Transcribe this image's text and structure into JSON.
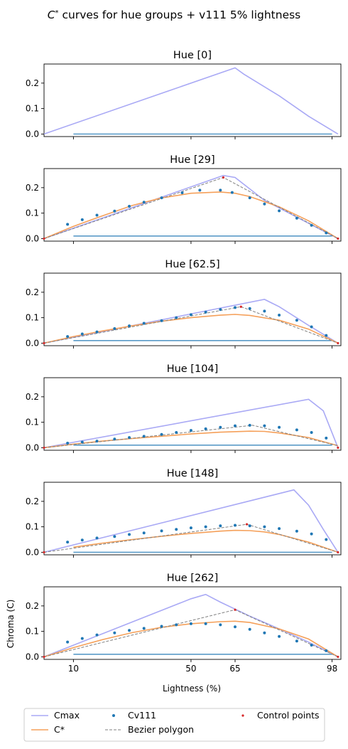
{
  "chart_data": {
    "type": "line",
    "title_prefix": "C",
    "title_sup": "*",
    "title_rest": " curves for hue groups + v111 5% lightness",
    "xlabel": "Lightness (%)",
    "ylabel": "Chroma (C)",
    "xlim": [
      0,
      101
    ],
    "ylim": [
      -0.01,
      0.275
    ],
    "xticks": [
      10,
      50,
      65,
      98
    ],
    "xtick_labels": [
      "10",
      "50",
      "65",
      "98"
    ],
    "yticks": [
      0.0,
      0.1,
      0.2
    ],
    "ytick_labels": [
      "0.0",
      "0.1",
      "0.2"
    ],
    "legend": {
      "placement": "below",
      "entries": [
        {
          "key": "cmax",
          "label": "Cmax"
        },
        {
          "key": "cstar",
          "label": "C*"
        },
        {
          "key": "cv111",
          "label": "Cv111"
        },
        {
          "key": "bezier",
          "label": "Bezier polygon"
        },
        {
          "key": "ctrl",
          "label": "Control points"
        }
      ]
    },
    "colors": {
      "cmax": "#a9a9f5",
      "cstar": "#f5a05a",
      "cv111": "#1f77b4",
      "bezier": "#808080",
      "ctrl": "#d62728",
      "baseline": "#5b9bc8"
    },
    "panels": [
      {
        "title": "Hue [0]",
        "cmax": [
          [
            0,
            0
          ],
          [
            65,
            0.26
          ],
          [
            68,
            0.235
          ],
          [
            80,
            0.15
          ],
          [
            90,
            0.07
          ],
          [
            100,
            0
          ]
        ],
        "cstar": [],
        "cv111": [],
        "bezier": [],
        "ctrl": [],
        "baseline": {
          "y": 0.0,
          "x0": 10,
          "x1": 98
        },
        "show_xticklabels": false
      },
      {
        "title": "Hue [29]",
        "cmax": [
          [
            0,
            0
          ],
          [
            61,
            0.248
          ],
          [
            65,
            0.24
          ],
          [
            75,
            0.15
          ],
          [
            90,
            0.06
          ],
          [
            100,
            0
          ]
        ],
        "cstar": [
          [
            0,
            0
          ],
          [
            10,
            0.048
          ],
          [
            20,
            0.09
          ],
          [
            30,
            0.13
          ],
          [
            40,
            0.16
          ],
          [
            50,
            0.178
          ],
          [
            60,
            0.183
          ],
          [
            65,
            0.178
          ],
          [
            70,
            0.165
          ],
          [
            80,
            0.125
          ],
          [
            90,
            0.07
          ],
          [
            100,
            0
          ]
        ],
        "cv111": [
          [
            8,
            0.056
          ],
          [
            13,
            0.074
          ],
          [
            18,
            0.092
          ],
          [
            24,
            0.108
          ],
          [
            29,
            0.127
          ],
          [
            34,
            0.143
          ],
          [
            40,
            0.16
          ],
          [
            47,
            0.18
          ],
          [
            53,
            0.19
          ],
          [
            60,
            0.19
          ],
          [
            64,
            0.181
          ],
          [
            70,
            0.16
          ],
          [
            75,
            0.136
          ],
          [
            80,
            0.109
          ],
          [
            86,
            0.08
          ],
          [
            91,
            0.052
          ],
          [
            96,
            0.022
          ]
        ],
        "bezier": [
          [
            0,
            0
          ],
          [
            61,
            0.24
          ],
          [
            100,
            0
          ]
        ],
        "ctrl": [
          [
            0,
            0
          ],
          [
            61,
            0.24
          ],
          [
            100,
            0
          ]
        ],
        "baseline": {
          "y": 0.01,
          "x0": 10,
          "x1": 98
        },
        "show_xticklabels": false
      },
      {
        "title": "Hue [62.5]",
        "cmax": [
          [
            0,
            0
          ],
          [
            75,
            0.172
          ],
          [
            80,
            0.143
          ],
          [
            90,
            0.07
          ],
          [
            100,
            0
          ]
        ],
        "cstar": [
          [
            0,
            0
          ],
          [
            10,
            0.026
          ],
          [
            20,
            0.048
          ],
          [
            30,
            0.068
          ],
          [
            40,
            0.086
          ],
          [
            50,
            0.1
          ],
          [
            60,
            0.11
          ],
          [
            65,
            0.113
          ],
          [
            70,
            0.109
          ],
          [
            80,
            0.09
          ],
          [
            90,
            0.055
          ],
          [
            100,
            0
          ]
        ],
        "cv111": [
          [
            8,
            0.026
          ],
          [
            13,
            0.036
          ],
          [
            18,
            0.044
          ],
          [
            24,
            0.057
          ],
          [
            29,
            0.068
          ],
          [
            34,
            0.078
          ],
          [
            40,
            0.088
          ],
          [
            45,
            0.1
          ],
          [
            50,
            0.112
          ],
          [
            55,
            0.122
          ],
          [
            60,
            0.132
          ],
          [
            65,
            0.14
          ],
          [
            70,
            0.136
          ],
          [
            75,
            0.126
          ],
          [
            80,
            0.11
          ],
          [
            86,
            0.09
          ],
          [
            91,
            0.064
          ],
          [
            96,
            0.03
          ]
        ],
        "bezier": [
          [
            0,
            0
          ],
          [
            67,
            0.143
          ],
          [
            100,
            0
          ]
        ],
        "ctrl": [
          [
            0,
            0
          ],
          [
            67,
            0.143
          ],
          [
            100,
            0
          ]
        ],
        "baseline": {
          "y": 0.01,
          "x0": 10,
          "x1": 98
        },
        "show_xticklabels": false
      },
      {
        "title": "Hue [104]",
        "cmax": [
          [
            0,
            0
          ],
          [
            90,
            0.19
          ],
          [
            95,
            0.145
          ],
          [
            100,
            0
          ]
        ],
        "cstar": [
          [
            0,
            0
          ],
          [
            10,
            0.014
          ],
          [
            20,
            0.026
          ],
          [
            30,
            0.036
          ],
          [
            40,
            0.045
          ],
          [
            50,
            0.054
          ],
          [
            60,
            0.061
          ],
          [
            70,
            0.065
          ],
          [
            75,
            0.064
          ],
          [
            80,
            0.058
          ],
          [
            90,
            0.04
          ],
          [
            100,
            0.008
          ]
        ],
        "cv111": [
          [
            8,
            0.018
          ],
          [
            13,
            0.022
          ],
          [
            18,
            0.026
          ],
          [
            24,
            0.034
          ],
          [
            29,
            0.04
          ],
          [
            34,
            0.045
          ],
          [
            40,
            0.052
          ],
          [
            45,
            0.06
          ],
          [
            50,
            0.068
          ],
          [
            55,
            0.074
          ],
          [
            60,
            0.08
          ],
          [
            65,
            0.086
          ],
          [
            70,
            0.088
          ],
          [
            75,
            0.086
          ],
          [
            80,
            0.08
          ],
          [
            86,
            0.07
          ],
          [
            91,
            0.06
          ],
          [
            96,
            0.038
          ]
        ],
        "bezier": [
          [
            0,
            0
          ],
          [
            71,
            0.088
          ],
          [
            100,
            0.008
          ]
        ],
        "ctrl": [
          [
            0,
            0
          ],
          [
            100,
            0
          ]
        ],
        "baseline": {
          "y": 0.01,
          "x0": 10,
          "x1": 98
        },
        "show_xticklabels": false
      },
      {
        "title": "Hue [148]",
        "cmax": [
          [
            0,
            0
          ],
          [
            85,
            0.245
          ],
          [
            90,
            0.185
          ],
          [
            95,
            0.09
          ],
          [
            100,
            0
          ]
        ],
        "cstar": [
          [
            10,
            0.02
          ],
          [
            20,
            0.036
          ],
          [
            30,
            0.05
          ],
          [
            40,
            0.063
          ],
          [
            50,
            0.074
          ],
          [
            60,
            0.083
          ],
          [
            65,
            0.086
          ],
          [
            70,
            0.085
          ],
          [
            75,
            0.08
          ],
          [
            80,
            0.07
          ],
          [
            90,
            0.04
          ],
          [
            100,
            0
          ]
        ],
        "cv111": [
          [
            8,
            0.04
          ],
          [
            13,
            0.048
          ],
          [
            18,
            0.056
          ],
          [
            24,
            0.062
          ],
          [
            29,
            0.07
          ],
          [
            34,
            0.076
          ],
          [
            40,
            0.084
          ],
          [
            45,
            0.09
          ],
          [
            50,
            0.096
          ],
          [
            55,
            0.1
          ],
          [
            60,
            0.104
          ],
          [
            65,
            0.106
          ],
          [
            70,
            0.104
          ],
          [
            75,
            0.1
          ],
          [
            80,
            0.093
          ],
          [
            86,
            0.083
          ],
          [
            91,
            0.072
          ],
          [
            96,
            0.05
          ]
        ],
        "bezier": [
          [
            0,
            0
          ],
          [
            69,
            0.11
          ],
          [
            100,
            0
          ]
        ],
        "ctrl": [
          [
            0,
            0
          ],
          [
            69,
            0.11
          ],
          [
            100,
            0
          ]
        ],
        "baseline": {
          "y": 0.0,
          "x0": 10,
          "x1": 98
        },
        "show_xticklabels": true
      },
      {
        "title": "Hue [262]",
        "cmax": [
          [
            0,
            0
          ],
          [
            50,
            0.228
          ],
          [
            55,
            0.245
          ],
          [
            60,
            0.215
          ],
          [
            70,
            0.16
          ],
          [
            80,
            0.11
          ],
          [
            90,
            0.058
          ],
          [
            100,
            0
          ]
        ],
        "cstar": [
          [
            0,
            0
          ],
          [
            10,
            0.036
          ],
          [
            20,
            0.068
          ],
          [
            30,
            0.095
          ],
          [
            40,
            0.116
          ],
          [
            50,
            0.13
          ],
          [
            60,
            0.138
          ],
          [
            65,
            0.14
          ],
          [
            70,
            0.135
          ],
          [
            80,
            0.11
          ],
          [
            90,
            0.07
          ],
          [
            100,
            0
          ]
        ],
        "cv111": [
          [
            8,
            0.058
          ],
          [
            13,
            0.072
          ],
          [
            18,
            0.086
          ],
          [
            24,
            0.094
          ],
          [
            29,
            0.104
          ],
          [
            34,
            0.112
          ],
          [
            40,
            0.12
          ],
          [
            45,
            0.126
          ],
          [
            50,
            0.13
          ],
          [
            55,
            0.13
          ],
          [
            60,
            0.126
          ],
          [
            65,
            0.118
          ],
          [
            70,
            0.108
          ],
          [
            75,
            0.094
          ],
          [
            80,
            0.08
          ],
          [
            86,
            0.062
          ],
          [
            91,
            0.046
          ],
          [
            96,
            0.024
          ]
        ],
        "bezier": [
          [
            0,
            0
          ],
          [
            65,
            0.185
          ],
          [
            100,
            0
          ]
        ],
        "ctrl": [
          [
            0,
            0
          ],
          [
            65,
            0.185
          ],
          [
            100,
            0
          ]
        ],
        "baseline": {
          "y": 0.01,
          "x0": 10,
          "x1": 98
        },
        "show_xticklabels": true
      }
    ]
  }
}
